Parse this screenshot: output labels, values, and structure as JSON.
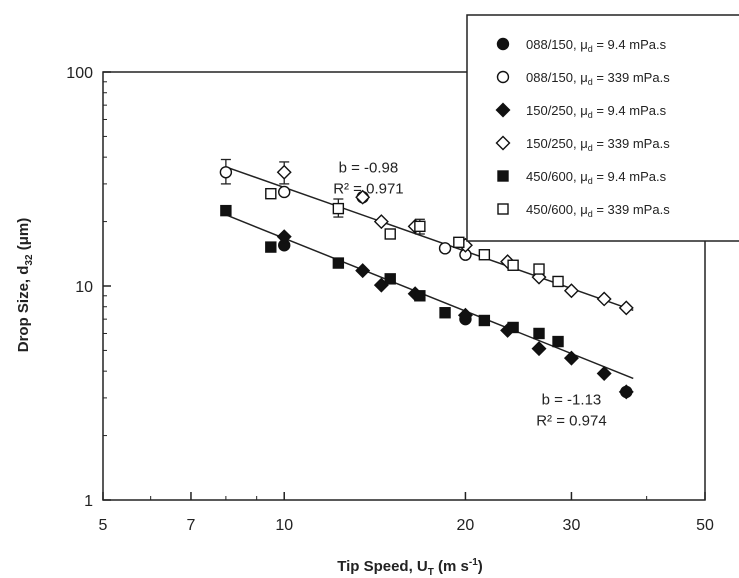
{
  "chart_data": {
    "type": "scatter",
    "xscale": "log",
    "yscale": "log",
    "xlim": [
      5,
      50
    ],
    "ylim": [
      1,
      100
    ],
    "xticks": [
      5,
      7,
      10,
      20,
      30,
      50
    ],
    "yticks": [
      1,
      10,
      100
    ],
    "xlabel": {
      "main": "Tip Speed, U",
      "sub": "T",
      "unit_open": " (m s",
      "sup": "-1",
      "unit_close": ")"
    },
    "ylabel": {
      "main": "Drop Size, d",
      "sub": "32",
      "unit": " (μm)"
    },
    "legend_position": "top-right, outside plot",
    "series": [
      {
        "name": "088/150, μd = 9.4 mPa.s",
        "label": {
          "pre": "088/150, μ",
          "sub": "d",
          "post": " = 9.4 mPa.s"
        },
        "marker": "circle",
        "filled": true,
        "x": [
          10,
          20,
          37
        ],
        "y": [
          15.5,
          7.0,
          3.2
        ]
      },
      {
        "name": "088/150, μd = 339 mPa.s",
        "label": {
          "pre": "088/150, μ",
          "sub": "d",
          "post": " = 339 mPa.s"
        },
        "marker": "circle",
        "filled": false,
        "x": [
          8,
          10,
          13.5,
          18.5,
          20
        ],
        "y": [
          34,
          27.5,
          26,
          15,
          14
        ]
      },
      {
        "name": "150/250, μd = 9.4 mPa.s",
        "label": {
          "pre": "150/250, μ",
          "sub": "d",
          "post": " = 9.4 mPa.s"
        },
        "marker": "diamond",
        "filled": true,
        "x": [
          10,
          13.5,
          14.5,
          16.5,
          20,
          23.5,
          26.5,
          30,
          34,
          37
        ],
        "y": [
          17,
          11.8,
          10.1,
          9.2,
          7.3,
          6.2,
          5.1,
          4.6,
          3.9,
          3.2
        ]
      },
      {
        "name": "150/250, μd = 339 mPa.s",
        "label": {
          "pre": "150/250, μ",
          "sub": "d",
          "post": " = 339 mPa.s"
        },
        "marker": "diamond",
        "filled": false,
        "x": [
          10,
          13.5,
          14.5,
          16.5,
          20,
          23.5,
          26.5,
          30,
          34,
          37
        ],
        "y": [
          34,
          26,
          20,
          19,
          15.5,
          13,
          11,
          9.5,
          8.7,
          7.9
        ]
      },
      {
        "name": "450/600, μd = 9.4 mPa.s",
        "label": {
          "pre": "450/600, μ",
          "sub": "d",
          "post": " = 9.4 mPa.s"
        },
        "marker": "square",
        "filled": true,
        "x": [
          8,
          9.5,
          12.3,
          15,
          16.8,
          18.5,
          21.5,
          24,
          26.5,
          28.5
        ],
        "y": [
          22.5,
          15.2,
          12.8,
          10.8,
          9.0,
          7.5,
          6.9,
          6.4,
          6.0,
          5.5
        ]
      },
      {
        "name": "450/600, μd = 339 mPa.s",
        "label": {
          "pre": "450/600, μ",
          "sub": "d",
          "post": " = 339 mPa.s"
        },
        "marker": "square",
        "filled": false,
        "x": [
          9.5,
          12.3,
          15,
          16.8,
          19.5,
          21.5,
          24,
          26.5,
          28.5
        ],
        "y": [
          27,
          23,
          17.5,
          19,
          16,
          14,
          12.5,
          12,
          10.5
        ]
      }
    ],
    "error_bars": [
      {
        "x": 8,
        "y": 34,
        "lo": 30,
        "hi": 39
      },
      {
        "x": 10,
        "y": 34,
        "lo": 30,
        "hi": 38
      },
      {
        "x": 12.3,
        "y": 23,
        "lo": 21,
        "hi": 25.5
      },
      {
        "x": 16.8,
        "y": 19,
        "lo": 17.5,
        "hi": 20.5
      }
    ],
    "fit_lines": [
      {
        "x": [
          8,
          38
        ],
        "y": [
          36,
          7.7
        ],
        "label_b": "b = -0.98",
        "label_r2": "R² = 0.971",
        "label_anchor_x": 13.8,
        "label_anchor_y": 34
      },
      {
        "x": [
          8,
          38
        ],
        "y": [
          21.5,
          3.7
        ],
        "label_b": "b = -1.13",
        "label_r2": "R² = 0.974",
        "label_anchor_x": 30,
        "label_anchor_y": 2.8
      }
    ]
  }
}
